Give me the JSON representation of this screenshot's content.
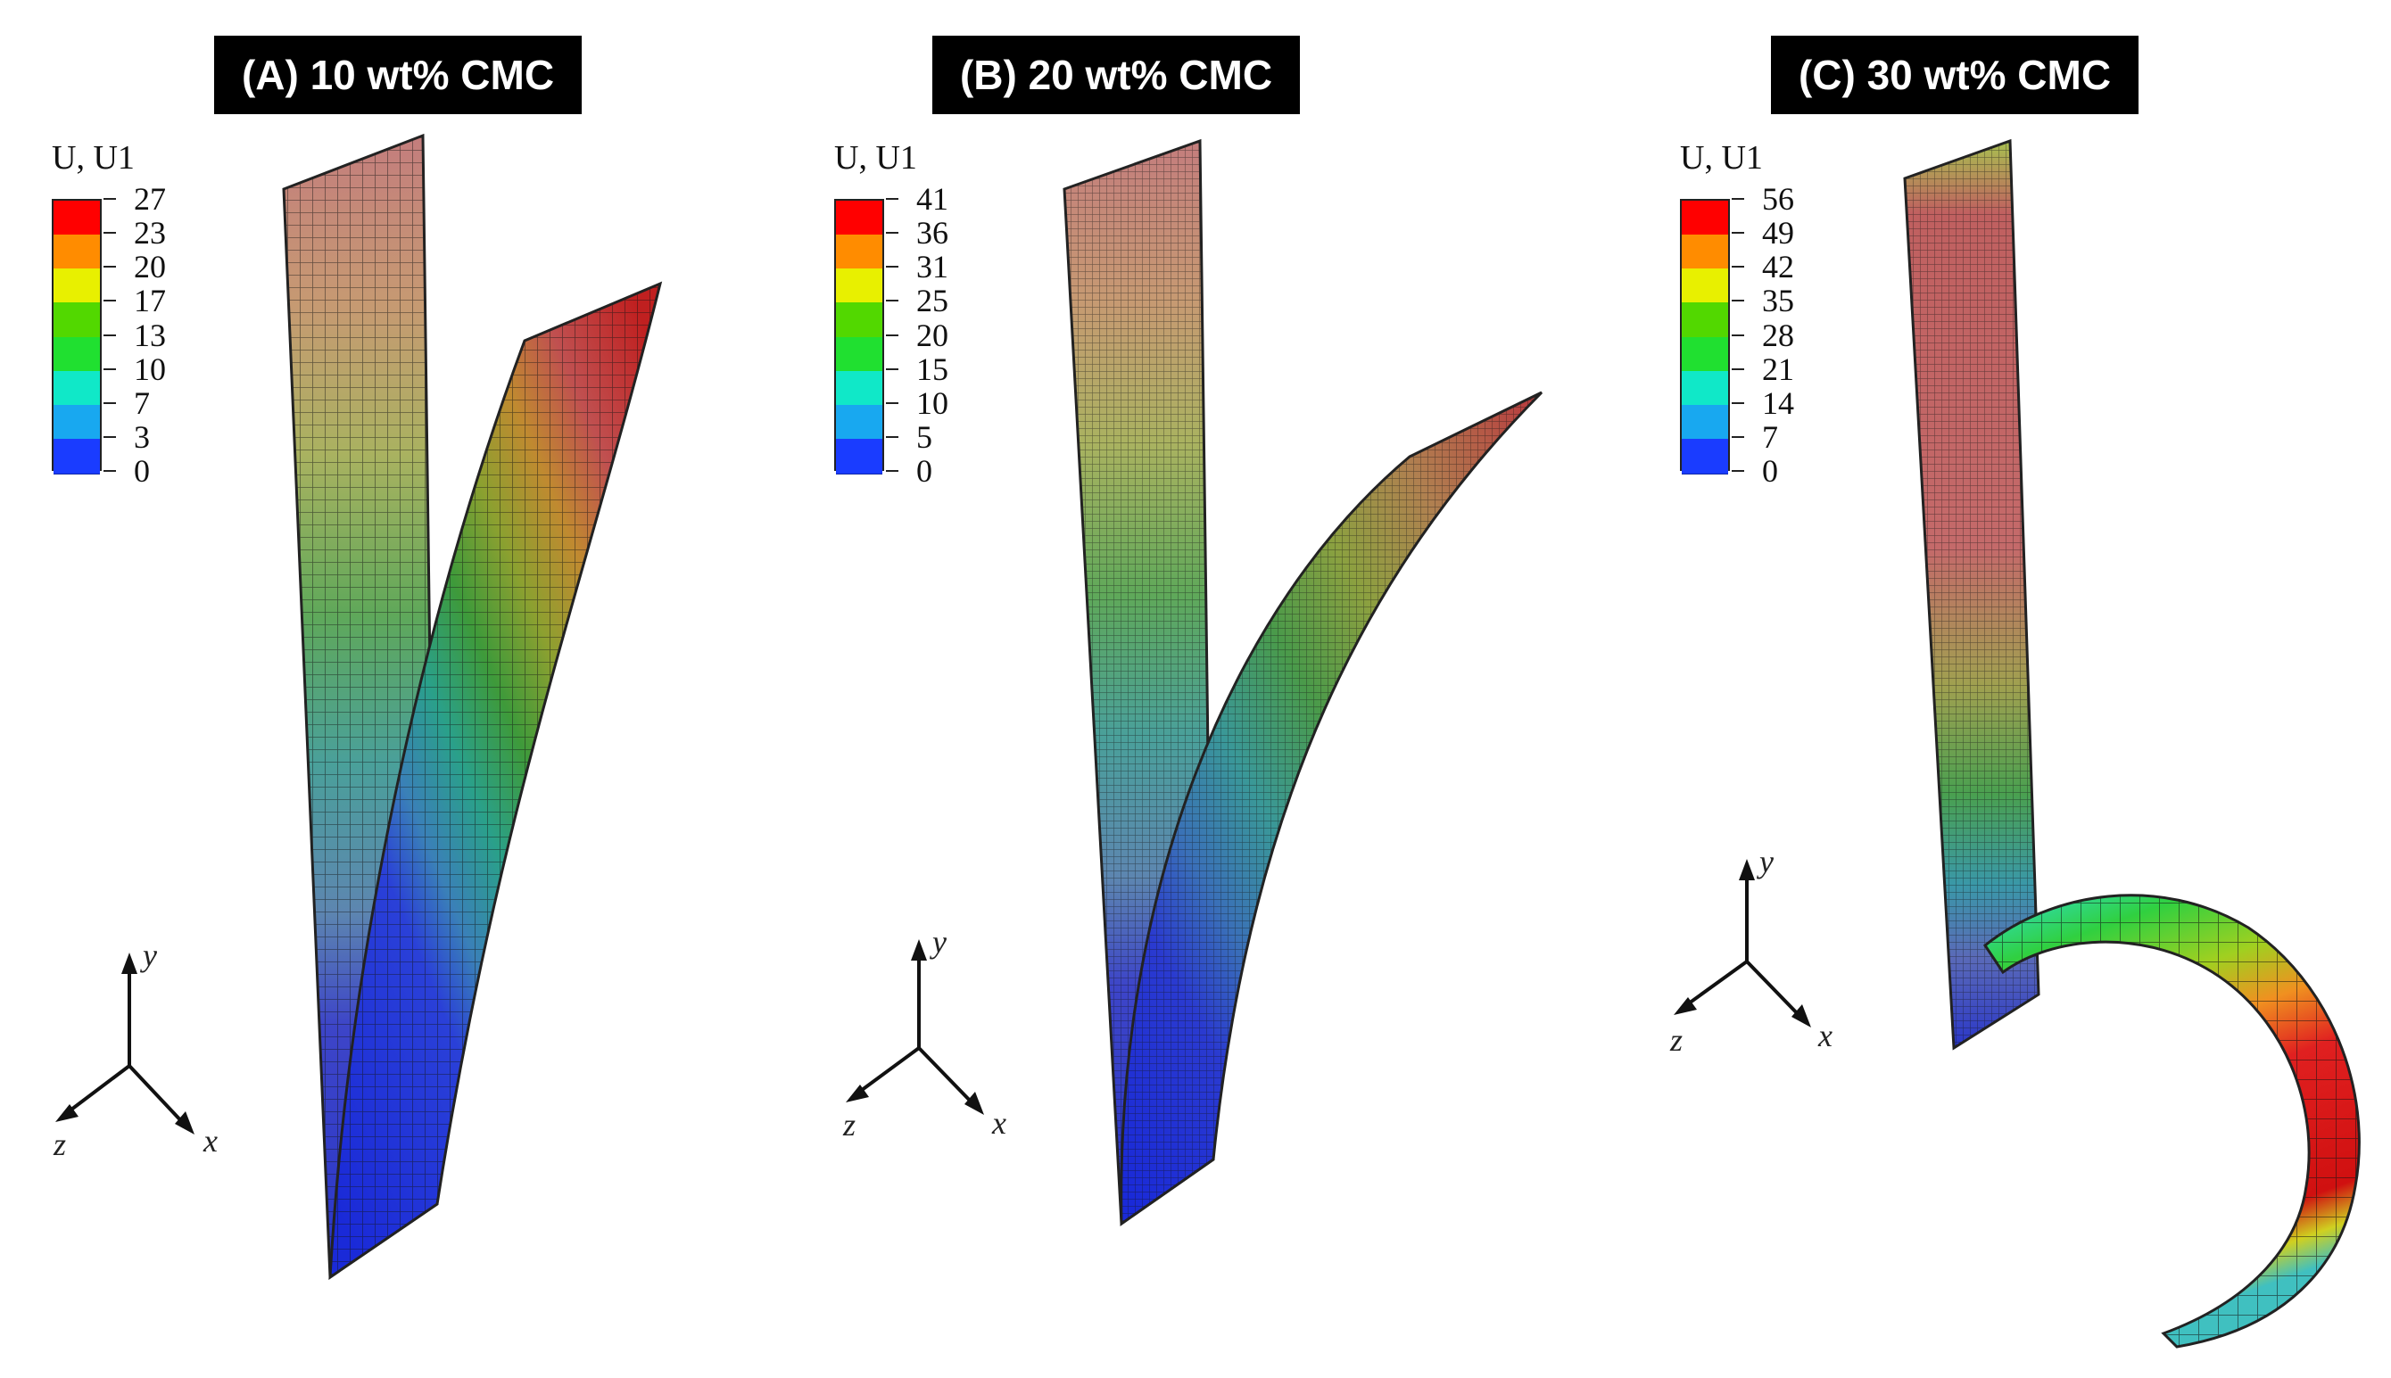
{
  "figure": {
    "panels": [
      {
        "id": "A",
        "title": "(A) 10 wt% CMC",
        "legend": {
          "title": "U, U1",
          "ticks": [
            "27",
            "23",
            "20",
            "17",
            "13",
            "10",
            "7",
            "3",
            "0"
          ]
        },
        "axes": {
          "y": "y",
          "z": "z",
          "x": "x"
        }
      },
      {
        "id": "B",
        "title": "(B) 20 wt% CMC",
        "legend": {
          "title": "U, U1",
          "ticks": [
            "41",
            "36",
            "31",
            "25",
            "20",
            "15",
            "10",
            "5",
            "0"
          ]
        },
        "axes": {
          "y": "y",
          "z": "z",
          "x": "x"
        }
      },
      {
        "id": "C",
        "title": "(C) 30 wt% CMC",
        "legend": {
          "title": "U, U1",
          "ticks": [
            "56",
            "49",
            "42",
            "35",
            "28",
            "21",
            "14",
            "7",
            "0"
          ]
        },
        "axes": {
          "y": "y",
          "z": "z",
          "x": "x"
        }
      }
    ],
    "colormap": [
      "#ff0000",
      "#ff8c00",
      "#e8f000",
      "#52d800",
      "#20e030",
      "#10e8c8",
      "#18a8f0",
      "#1a3cff"
    ]
  }
}
